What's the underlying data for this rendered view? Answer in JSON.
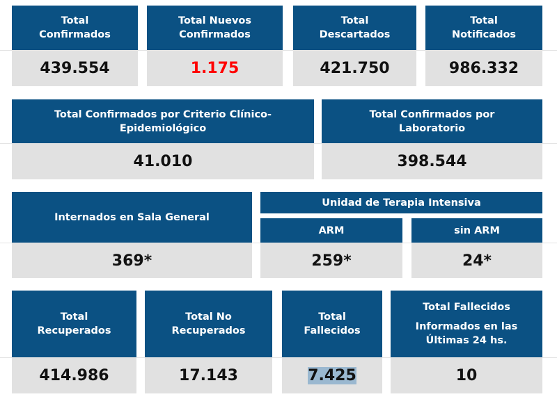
{
  "row1": [
    {
      "label_lines": [
        "Total",
        "Confirmados"
      ],
      "value": "439.554"
    },
    {
      "label_lines": [
        "Total Nuevos",
        "Confirmados"
      ],
      "value": "1.175",
      "value_color": "#ff0000"
    },
    {
      "label_lines": [
        "Total",
        "Descartados"
      ],
      "value": "421.750"
    },
    {
      "label_lines": [
        "Total",
        "Notificados"
      ],
      "value": "986.332"
    }
  ],
  "row2": [
    {
      "label_lines": [
        "Total Confirmados por Criterio Clínico-",
        "Epidemiológico"
      ],
      "value": "41.010"
    },
    {
      "label_lines": [
        "Total Confirmados por",
        "Laboratorio"
      ],
      "value": "398.544"
    }
  ],
  "row3": {
    "sala_general": {
      "label": "Internados en Sala General",
      "value": "369*"
    },
    "uti_title": "Unidad de Terapia Intensiva",
    "arm": {
      "label": "ARM",
      "value": "259*"
    },
    "sin_arm": {
      "label": "sin ARM",
      "value": "24*"
    }
  },
  "row4": [
    {
      "label_lines": [
        "Total",
        "Recuperados"
      ],
      "value": "414.986"
    },
    {
      "label_lines": [
        "Total No",
        "Recuperados"
      ],
      "value": "17.143"
    },
    {
      "label_lines": [
        "Total",
        "Fallecidos"
      ],
      "value": "7.425"
    },
    {
      "label_lines": [
        "Total Fallecidos",
        "Informados en las",
        "Últimas 24 hs."
      ],
      "value": "10"
    }
  ]
}
